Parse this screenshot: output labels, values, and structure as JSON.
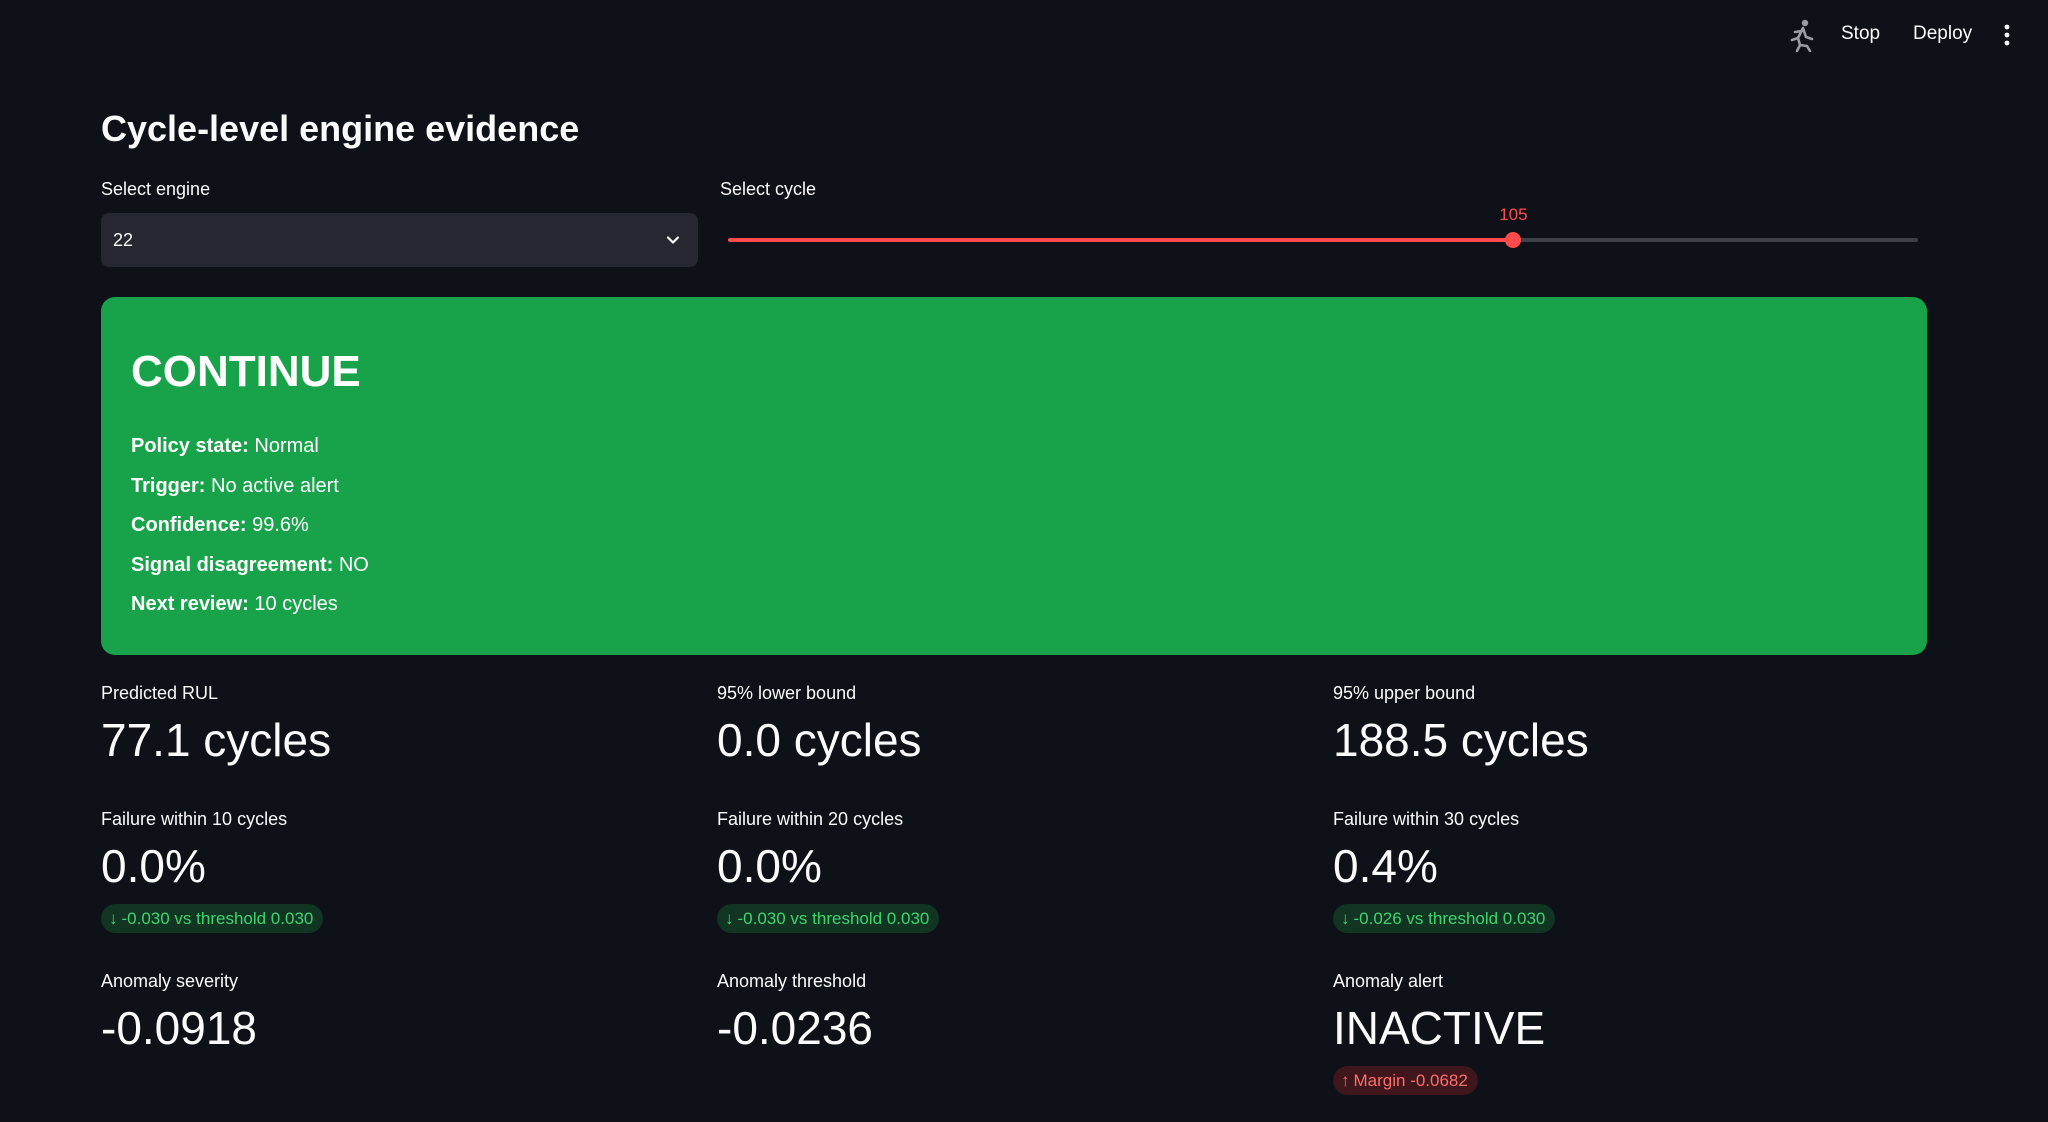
{
  "toolbar": {
    "running_icon": "running-man-icon",
    "stop_label": "Stop",
    "deploy_label": "Deploy",
    "menu_icon": "kebab-menu-icon"
  },
  "page": {
    "title": "Cycle-level engine evidence"
  },
  "engine_select": {
    "label": "Select engine",
    "value": "22",
    "icon": "chevron-down-icon"
  },
  "cycle_slider": {
    "label": "Select cycle",
    "value": "105",
    "fill_fraction": 0.66
  },
  "decision": {
    "title": "CONTINUE",
    "color": "#18a34b",
    "rows": [
      {
        "label": "Policy state:",
        "value": "Normal"
      },
      {
        "label": "Trigger:",
        "value": "No active alert"
      },
      {
        "label": "Confidence:",
        "value": "99.6%"
      },
      {
        "label": "Signal disagreement:",
        "value": "NO"
      },
      {
        "label": "Next review:",
        "value": "10 cycles"
      }
    ]
  },
  "metrics": {
    "predicted_rul": {
      "label": "Predicted RUL",
      "value": "77.1 cycles"
    },
    "lower_bound": {
      "label": "95% lower bound",
      "value": "0.0 cycles"
    },
    "upper_bound": {
      "label": "95% upper bound",
      "value": "188.5 cycles"
    },
    "fail_10": {
      "label": "Failure within 10 cycles",
      "value": "0.0%",
      "delta": "-0.030 vs threshold 0.030",
      "delta_arrow": "↓"
    },
    "fail_20": {
      "label": "Failure within 20 cycles",
      "value": "0.0%",
      "delta": "-0.030 vs threshold 0.030",
      "delta_arrow": "↓"
    },
    "fail_30": {
      "label": "Failure within 30 cycles",
      "value": "0.4%",
      "delta": "-0.026 vs threshold 0.030",
      "delta_arrow": "↓"
    },
    "anomaly_severity": {
      "label": "Anomaly severity",
      "value": "-0.0918"
    },
    "anomaly_threshold": {
      "label": "Anomaly threshold",
      "value": "-0.0236"
    },
    "anomaly_alert": {
      "label": "Anomaly alert",
      "value": "INACTIVE",
      "delta": "Margin -0.0682",
      "delta_arrow": "↑"
    }
  },
  "colors": {
    "background": "#0e1117",
    "accent": "#ff4b4b",
    "delta_good": "#3dd56d",
    "delta_bad": "#ff6c6c"
  }
}
